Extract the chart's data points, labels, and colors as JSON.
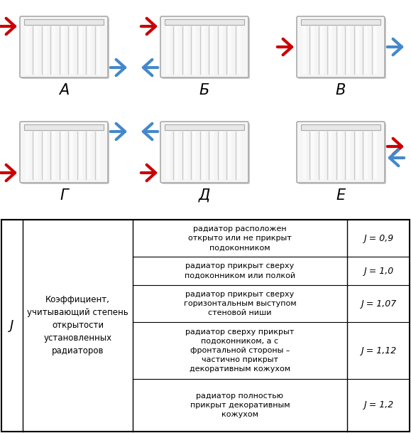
{
  "background_color": "#ffffff",
  "radiator_border": "#999999",
  "arrow_red": "#cc0000",
  "arrow_blue": "#4488cc",
  "labels_top": [
    "А",
    "Б",
    "В"
  ],
  "labels_bottom": [
    "Г",
    "Д",
    "Е"
  ],
  "table_col1": "J",
  "table_col2": "Коэффициент,\nучитывающий степень\nоткрытости\nустановленных\nрадиаторов",
  "table_rows": [
    {
      "description": "радиатор расположен\nоткрыто или не прикрыт\nподоконником",
      "value": "J = 0,9"
    },
    {
      "description": "радиатор прикрыт сверху\nподоконником или полкой",
      "value": "J = 1,0"
    },
    {
      "description": "радиатор прикрыт сверху\nгоризонтальным выступом\nстеновой ниши",
      "value": "J = 1,07"
    },
    {
      "description": "радиатор сверху прикрыт\nподоконником, а с\nфронтальной стороны –\nчастично прикрыт\nдекоративным кожухом",
      "value": "J = 1,12"
    },
    {
      "description": "радиатор полностью\nприкрыт декоративным\nкожухом",
      "value": "J = 1,2"
    }
  ],
  "figsize": [
    5.79,
    6.09
  ],
  "dpi": 100
}
